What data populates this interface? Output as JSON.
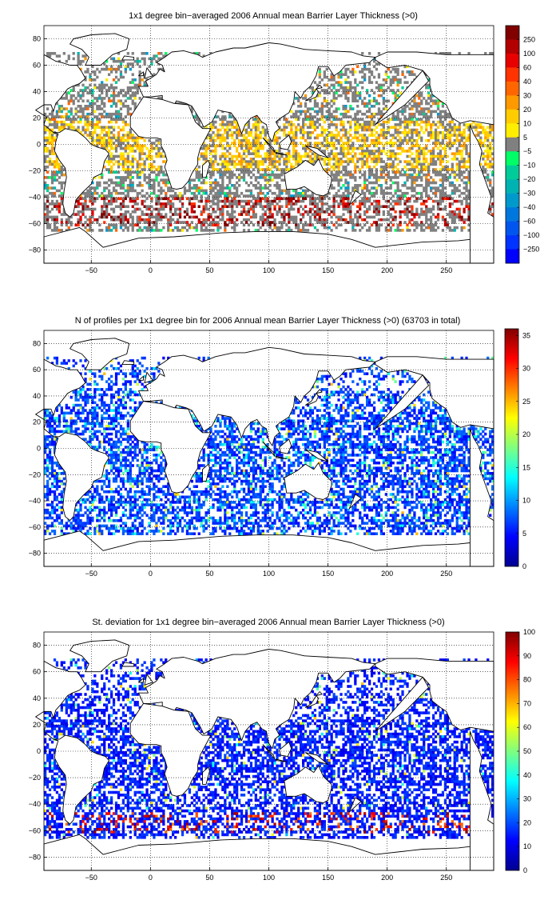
{
  "chart_data": [
    {
      "type": "heatmap",
      "title": "1x1 degree bin−averaged 2006 Annual mean Barrier Layer Thickness (>0)",
      "xticks": [
        "−50",
        "0",
        "50",
        "100",
        "150",
        "200",
        "250"
      ],
      "xtick_values": [
        -50,
        0,
        50,
        100,
        150,
        200,
        250
      ],
      "yticks": [
        "80",
        "60",
        "40",
        "20",
        "0",
        "−20",
        "−40",
        "−60",
        "−80"
      ],
      "ytick_values": [
        80,
        60,
        40,
        20,
        0,
        -20,
        -40,
        -60,
        -80
      ],
      "xlim": [
        -90,
        290
      ],
      "ylim": [
        -90,
        90
      ],
      "grid": true,
      "colorbar": {
        "type": "discrete",
        "labels": [
          "250",
          "100",
          "60",
          "40",
          "30",
          "20",
          "10",
          "5",
          "−5",
          "−10",
          "−20",
          "−30",
          "−40",
          "−60",
          "−100",
          "−250"
        ],
        "colors": [
          "#800000",
          "#b30000",
          "#e60000",
          "#ff3300",
          "#ff6600",
          "#ff9900",
          "#ffcc00",
          "#ffee00",
          "#808080",
          "#00ff66",
          "#00cc99",
          "#00b3b3",
          "#0099cc",
          "#0077dd",
          "#0055ee",
          "#0033ff",
          "#0000ff"
        ]
      }
    },
    {
      "type": "heatmap",
      "title": "N of profiles per 1x1 degree bin for 2006 Annual mean Barrier Layer Thickness (>0) (63703 in total)",
      "xticks": [
        "−50",
        "0",
        "50",
        "100",
        "150",
        "200",
        "250"
      ],
      "xtick_values": [
        -50,
        0,
        50,
        100,
        150,
        200,
        250
      ],
      "yticks": [
        "80",
        "60",
        "40",
        "20",
        "0",
        "−20",
        "−40",
        "−60",
        "−80"
      ],
      "ytick_values": [
        80,
        60,
        40,
        20,
        0,
        -20,
        -40,
        -60,
        -80
      ],
      "xlim": [
        -90,
        290
      ],
      "ylim": [
        -90,
        90
      ],
      "grid": true,
      "colorbar": {
        "type": "continuous",
        "min": 0,
        "max": 36,
        "labels": [
          "35",
          "30",
          "25",
          "20",
          "15",
          "10",
          "5",
          "0"
        ],
        "label_values": [
          35,
          30,
          25,
          20,
          15,
          10,
          5,
          0
        ]
      }
    },
    {
      "type": "heatmap",
      "title": "St. deviation for 1x1 degree bin−averaged 2006 Annual mean Barrier Layer Thickness (>0)",
      "xticks": [
        "−50",
        "0",
        "50",
        "100",
        "150",
        "200",
        "250"
      ],
      "xtick_values": [
        -50,
        0,
        50,
        100,
        150,
        200,
        250
      ],
      "yticks": [
        "80",
        "60",
        "40",
        "20",
        "0",
        "−20",
        "−40",
        "−60",
        "−80"
      ],
      "ytick_values": [
        80,
        60,
        40,
        20,
        0,
        -20,
        -40,
        -60,
        -80
      ],
      "xlim": [
        -90,
        290
      ],
      "ylim": [
        -90,
        90
      ],
      "grid": true,
      "colorbar": {
        "type": "continuous",
        "min": 0,
        "max": 100,
        "labels": [
          "100",
          "90",
          "80",
          "70",
          "60",
          "50",
          "40",
          "30",
          "20",
          "10",
          "0"
        ],
        "label_values": [
          100,
          90,
          80,
          70,
          60,
          50,
          40,
          30,
          20,
          10,
          0
        ]
      }
    }
  ]
}
